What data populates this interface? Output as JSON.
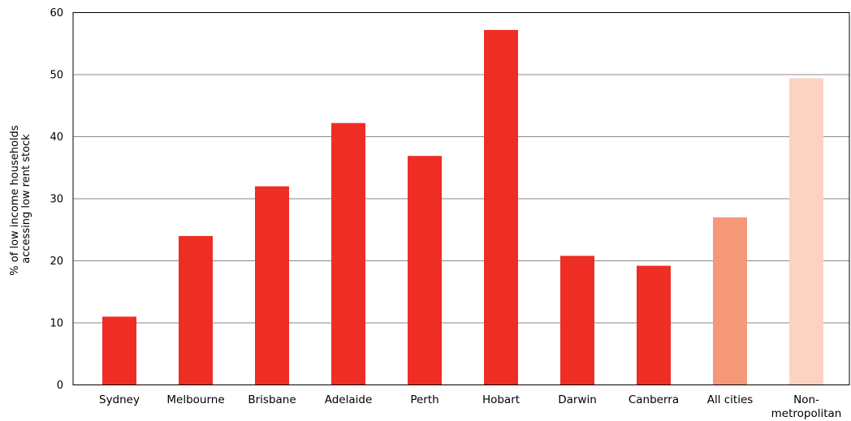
{
  "chart_data": {
    "type": "bar",
    "title": "",
    "xlabel": "",
    "ylabel_lines": [
      "% of low income households",
      "accessing low rent stock"
    ],
    "ylim": [
      0,
      60
    ],
    "yticks": [
      0,
      10,
      20,
      30,
      40,
      50,
      60
    ],
    "grid": true,
    "categories": [
      {
        "lines": [
          "Sydney"
        ],
        "value": 11,
        "color": "#ee2e24"
      },
      {
        "lines": [
          "Melbourne"
        ],
        "value": 24,
        "color": "#ee2e24"
      },
      {
        "lines": [
          "Brisbane"
        ],
        "value": 32,
        "color": "#ee2e24"
      },
      {
        "lines": [
          "Adelaide"
        ],
        "value": 42.2,
        "color": "#ee2e24"
      },
      {
        "lines": [
          "Perth"
        ],
        "value": 36.9,
        "color": "#ee2e24"
      },
      {
        "lines": [
          "Hobart"
        ],
        "value": 57.2,
        "color": "#ee2e24"
      },
      {
        "lines": [
          "Darwin"
        ],
        "value": 20.8,
        "color": "#ee2e24"
      },
      {
        "lines": [
          "Canberra"
        ],
        "value": 19.2,
        "color": "#ee2e24"
      },
      {
        "lines": [
          "All cities"
        ],
        "value": 27,
        "color": "#f5987a"
      },
      {
        "lines": [
          "Non-",
          "metropolitan"
        ],
        "value": 49.4,
        "color": "#fcd3c1"
      }
    ]
  }
}
